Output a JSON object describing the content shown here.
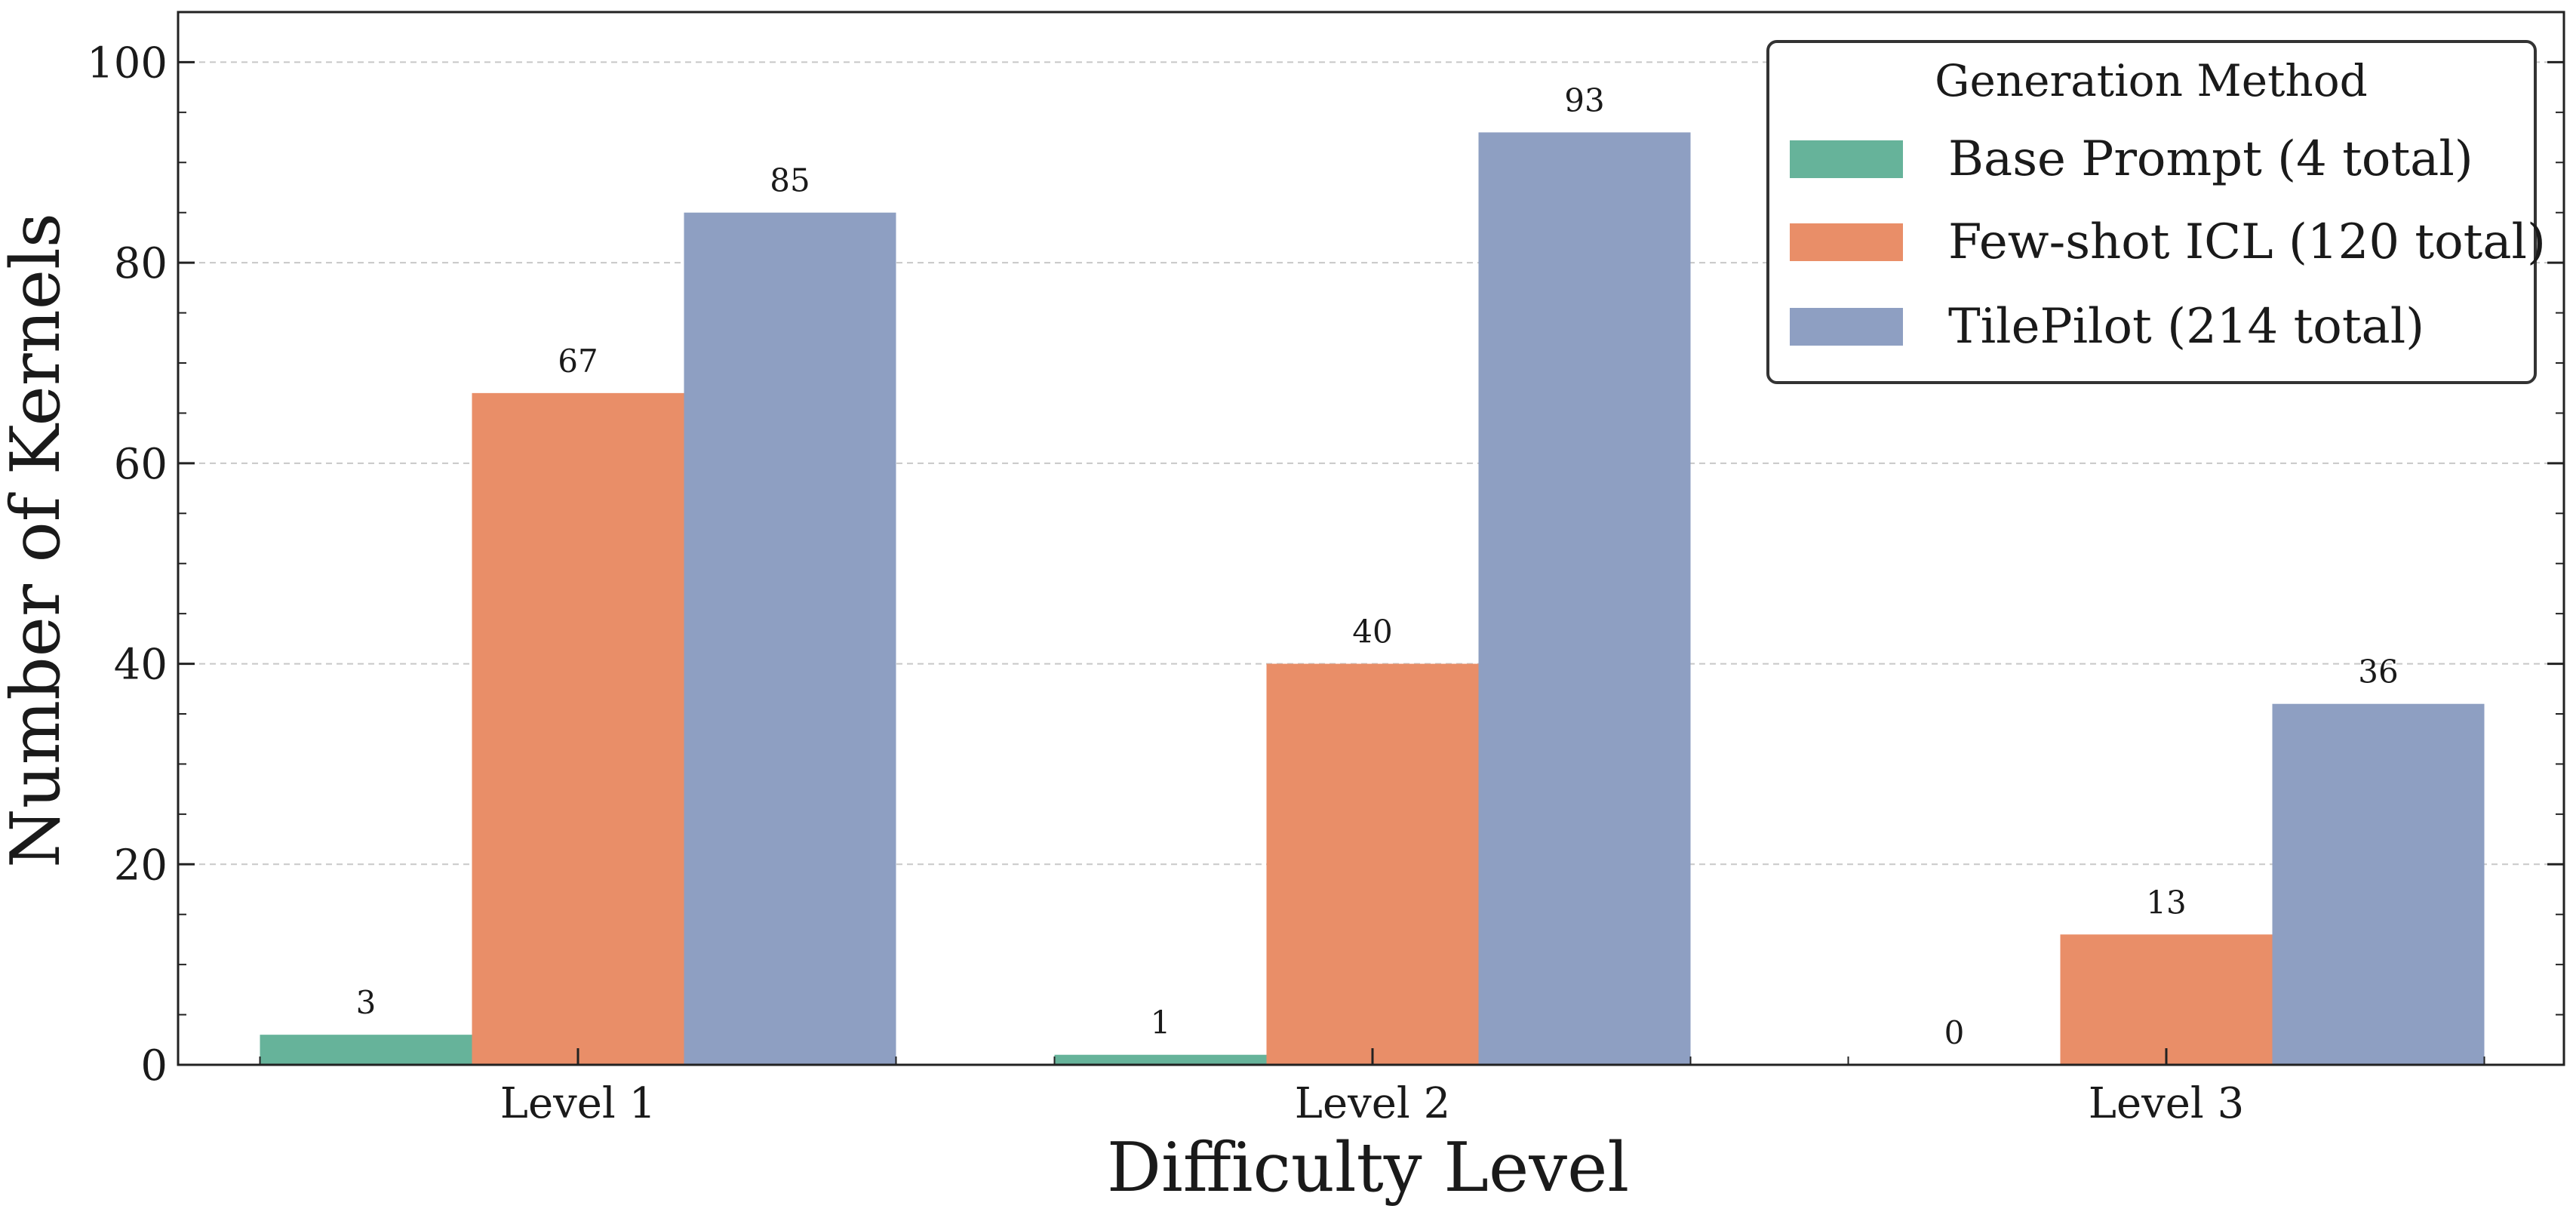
{
  "chart_data": {
    "type": "bar",
    "categories": [
      "Level 1",
      "Level 2",
      "Level 3"
    ],
    "series": [
      {
        "name": "Base Prompt (4 total)",
        "values": [
          3,
          1,
          0
        ],
        "color": "#66b39a"
      },
      {
        "name": "Few-shot ICL (120 total)",
        "values": [
          67,
          40,
          13
        ],
        "color": "#e98e68"
      },
      {
        "name": "TilePilot (214 total)",
        "values": [
          85,
          93,
          36
        ],
        "color": "#8e9fc2"
      }
    ],
    "xlabel": "Difficulty Level",
    "ylabel": "Number of Kernels",
    "ylim": [
      0,
      105
    ],
    "yticks": [
      0,
      20,
      40,
      60,
      80,
      100
    ],
    "grid": "horizontal dashed",
    "legend": {
      "title": "Generation Method",
      "placement": "top-right"
    }
  }
}
